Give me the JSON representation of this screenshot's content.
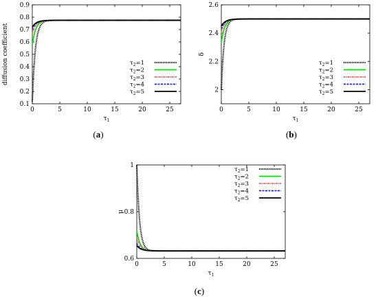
{
  "colors": {
    "tau1": "#000000",
    "tau2": "#00e000",
    "tau3": "#f06060",
    "tau4": "#2020e0",
    "tau5": "#000000"
  },
  "chart_data": [
    {
      "type": "line",
      "caption": "(a)",
      "ylabel": "diffusion coefficient",
      "xlabel": "τ1",
      "xlim": [
        0,
        27
      ],
      "ylim": [
        0.1,
        0.9
      ],
      "xticks": [
        "0",
        "5",
        "10",
        "15",
        "20",
        "25"
      ],
      "yticks": [
        "0.1",
        "0.2",
        "0.3",
        "0.4",
        "0.5",
        "0.6",
        "0.7",
        "0.8",
        "0.9"
      ],
      "legend_position": "bottom-right",
      "series": [
        {
          "name": "τ2=1",
          "start": 0.12,
          "end": 0.775,
          "decay": 0.55,
          "style": "dotted",
          "color": "#000000"
        },
        {
          "name": "τ2=2",
          "start": 0.57,
          "end": 0.775,
          "decay": 0.6,
          "style": "solid",
          "color": "#00e000"
        },
        {
          "name": "τ2=3",
          "start": 0.66,
          "end": 0.775,
          "decay": 0.65,
          "style": "dashdot",
          "color": "#f06060"
        },
        {
          "name": "τ2=4",
          "start": 0.7,
          "end": 0.775,
          "decay": 0.7,
          "style": "dashed",
          "color": "#2020e0"
        },
        {
          "name": "τ2=5",
          "start": 0.72,
          "end": 0.775,
          "decay": 0.75,
          "style": "solid",
          "color": "#000000"
        }
      ]
    },
    {
      "type": "line",
      "caption": "(b)",
      "ylabel": "δ",
      "xlabel": "τ1",
      "xlim": [
        0,
        27
      ],
      "ylim": [
        1.9,
        2.6
      ],
      "xticks": [
        "0",
        "5",
        "10",
        "15",
        "20",
        "25"
      ],
      "yticks": [
        "2",
        "2.2",
        "2.4",
        "2.6"
      ],
      "legend_position": "bottom-right",
      "series": [
        {
          "name": "τ2=1",
          "start": 2.0,
          "end": 2.5,
          "decay": 0.5,
          "style": "dotted",
          "color": "#000000"
        },
        {
          "name": "τ2=2",
          "start": 2.33,
          "end": 2.5,
          "decay": 0.6,
          "style": "solid",
          "color": "#00e000"
        },
        {
          "name": "τ2=3",
          "start": 2.4,
          "end": 2.5,
          "decay": 0.65,
          "style": "dashdot",
          "color": "#f06060"
        },
        {
          "name": "τ2=4",
          "start": 2.43,
          "end": 2.5,
          "decay": 0.7,
          "style": "dashed",
          "color": "#2020e0"
        },
        {
          "name": "τ2=5",
          "start": 2.45,
          "end": 2.5,
          "decay": 0.75,
          "style": "solid",
          "color": "#000000"
        }
      ]
    },
    {
      "type": "line",
      "caption": "(c)",
      "ylabel": "μ",
      "xlabel": "τ1",
      "xlim": [
        0,
        27
      ],
      "ylim": [
        0.6,
        1.0
      ],
      "xticks": [
        "0",
        "5",
        "10",
        "15",
        "20",
        "25"
      ],
      "yticks": [
        "0.6",
        "0.8",
        "1"
      ],
      "legend_position": "top-right",
      "series": [
        {
          "name": "τ2=1",
          "start": 1.0,
          "end": 0.632,
          "decay": 0.5,
          "style": "dotted",
          "color": "#000000"
        },
        {
          "name": "τ2=2",
          "start": 0.72,
          "end": 0.632,
          "decay": 0.6,
          "style": "solid",
          "color": "#00e000"
        },
        {
          "name": "τ2=3",
          "start": 0.69,
          "end": 0.632,
          "decay": 0.65,
          "style": "dashdot",
          "color": "#f06060"
        },
        {
          "name": "τ2=4",
          "start": 0.665,
          "end": 0.632,
          "decay": 0.7,
          "style": "dashed",
          "color": "#2020e0"
        },
        {
          "name": "τ2=5",
          "start": 0.655,
          "end": 0.632,
          "decay": 0.75,
          "style": "solid",
          "color": "#000000"
        }
      ]
    }
  ]
}
